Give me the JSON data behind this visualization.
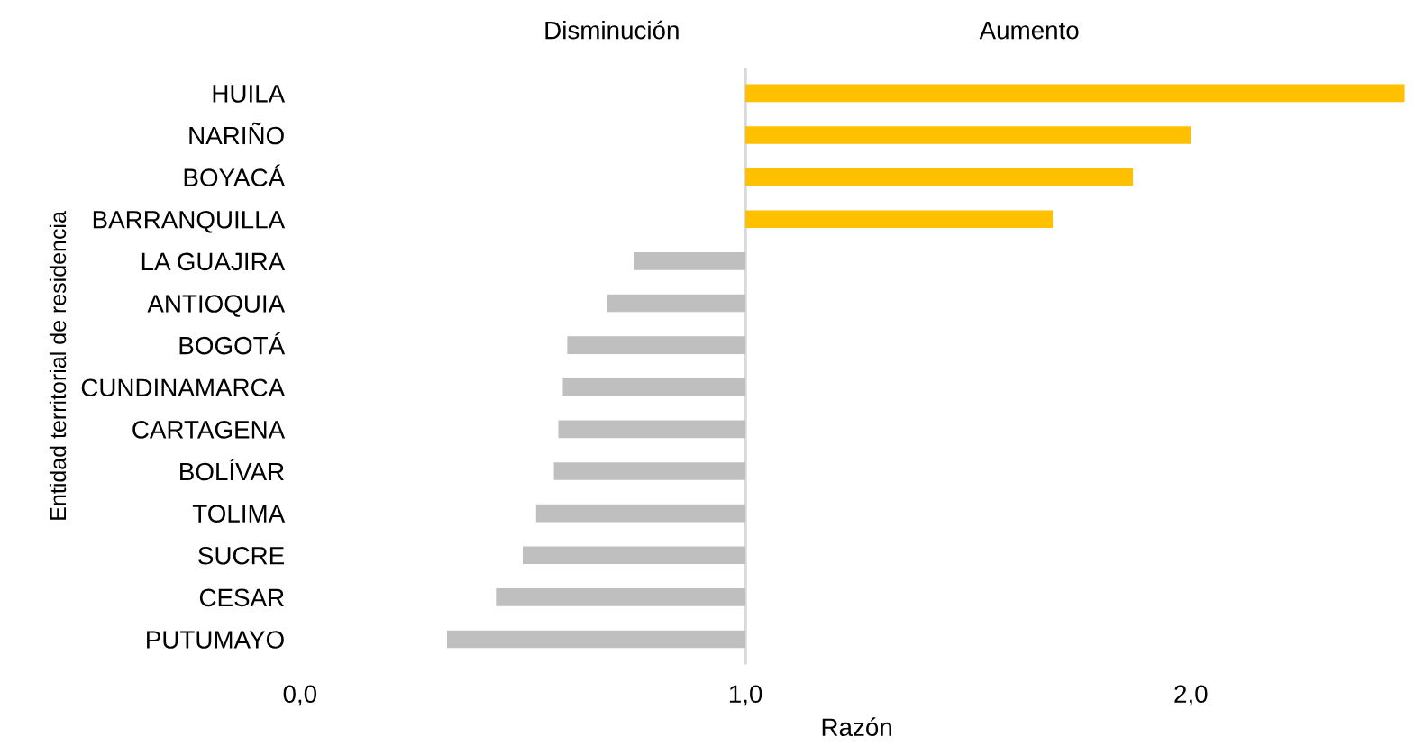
{
  "chart_data": {
    "type": "bar",
    "orientation": "horizontal",
    "xlabel": "Razón",
    "ylabel": "Entidad territorial de residencia",
    "categories": [
      "HUILA",
      "NARIÑO",
      "BOYACÁ",
      "BARRANQUILLA",
      "LA GUAJIRA",
      "ANTIOQUIA",
      "BOGOTÁ",
      "CUNDINAMARCA",
      "CARTAGENA",
      "BOLÍVAR",
      "TOLIMA",
      "SUCRE",
      "CESAR",
      "PUTUMAYO"
    ],
    "base": [
      1,
      1,
      1,
      1,
      1,
      1,
      1,
      1,
      1,
      1,
      1,
      1,
      1,
      1
    ],
    "values": [
      1.48,
      1.0,
      0.87,
      0.69,
      -0.25,
      -0.31,
      -0.4,
      -0.41,
      -0.42,
      -0.43,
      -0.47,
      -0.5,
      -0.56,
      -0.67
    ],
    "colors": [
      "#ffc000",
      "#ffc000",
      "#ffc000",
      "#ffc000",
      "#bfbfbf",
      "#bfbfbf",
      "#bfbfbf",
      "#bfbfbf",
      "#bfbfbf",
      "#bfbfbf",
      "#bfbfbf",
      "#bfbfbf",
      "#bfbfbf",
      "#bfbfbf"
    ],
    "xlim": [
      0,
      2.5
    ],
    "xticks": [
      {
        "value": 0,
        "label": "0,0"
      },
      {
        "value": 1,
        "label": "1,0"
      },
      {
        "value": 2,
        "label": "2,0"
      }
    ],
    "ref_lines": [
      {
        "axis": "x",
        "value": 1,
        "color": "#d9d9d9"
      }
    ],
    "annotations": [
      "Disminución",
      "Aumento"
    ],
    "grid": false,
    "legend": false
  }
}
